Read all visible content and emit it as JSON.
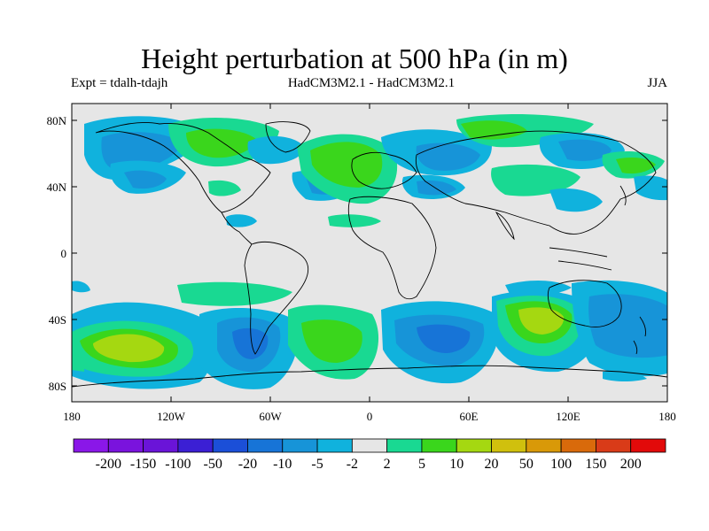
{
  "title": "Height perturbation at 500 hPa (in m)",
  "experiment": "Expt = tdalh-tdajh",
  "models": "HadCM3M2.1 - HadCM3M2.1",
  "season": "JJA",
  "axes": {
    "y_ticks": [
      "80N",
      "40N",
      "0",
      "40S",
      "80S"
    ],
    "x_ticks": [
      "180",
      "120W",
      "60W",
      "0",
      "60E",
      "120E",
      "180"
    ]
  },
  "colorbar": {
    "labels": [
      "-200",
      "-150",
      "-100",
      "-50",
      "-20",
      "-10",
      "-5",
      "-2",
      "2",
      "5",
      "10",
      "20",
      "50",
      "100",
      "150",
      "200"
    ],
    "colors": [
      "#8a17e8",
      "#7a13dd",
      "#6a14d8",
      "#3b1fd4",
      "#1b4fd8",
      "#1774d7",
      "#1794d8",
      "#10b2dd",
      "#e6e6e6",
      "#19d992",
      "#3ad61c",
      "#a5d811",
      "#d0c00d",
      "#d99908",
      "#d96a0b",
      "#d93b18",
      "#e20a0a"
    ]
  },
  "colors": {
    "background_missing": "#e6e6e6",
    "land_outline": "#000000"
  }
}
